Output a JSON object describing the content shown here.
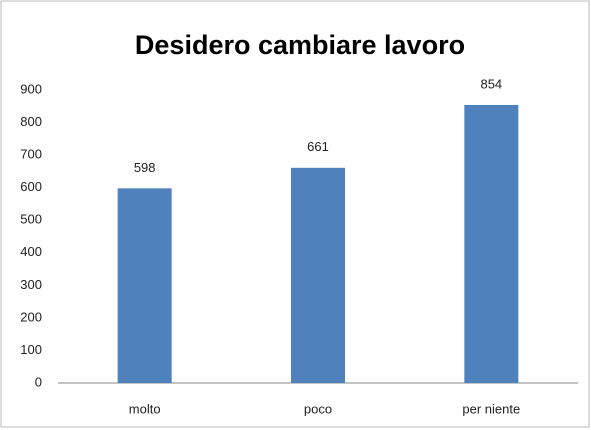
{
  "chart_data": {
    "type": "bar",
    "title": "Desidero cambiare lavoro",
    "categories": [
      "molto",
      "poco",
      "per niente"
    ],
    "values": [
      598,
      661,
      854
    ],
    "color": "#4f81bd",
    "ylim": [
      0,
      900
    ],
    "yticks": [
      0,
      100,
      200,
      300,
      400,
      500,
      600,
      700,
      800,
      900
    ],
    "grid": false,
    "data_labels": true
  }
}
